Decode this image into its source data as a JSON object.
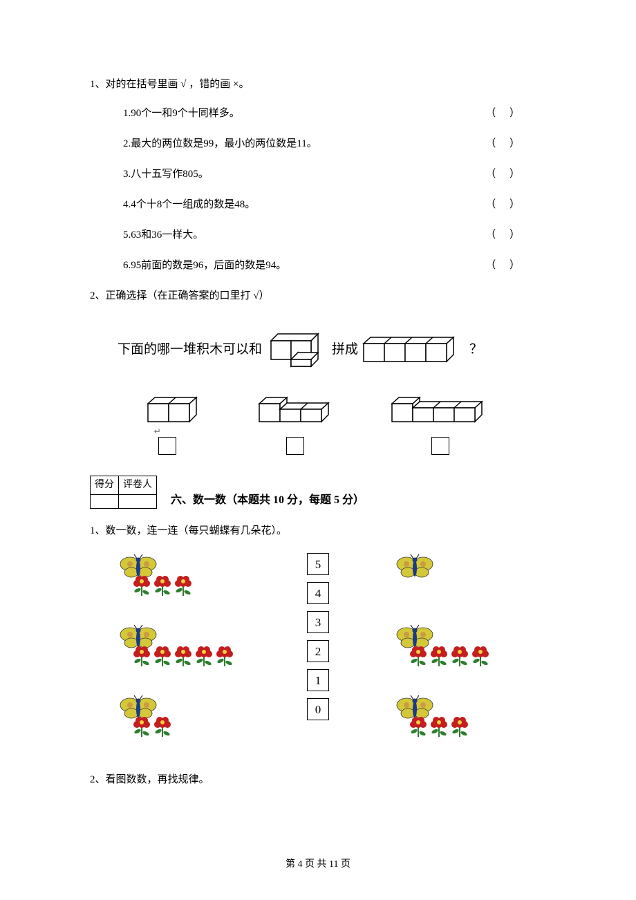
{
  "q1": {
    "prompt": "1、对的在括号里画 √ ，错的画 ×。",
    "items": [
      "1.90个一和9个十同样多。",
      "2.最大的两位数是99，最小的两位数是11。",
      "3.八十五写作805。",
      "4.4个十8个一组成的数是48。",
      "5.63和36一样大。",
      "6.95前面的数是96，后面的数是94。"
    ],
    "paren": "（    ）"
  },
  "q2": {
    "prompt": "2、正确选择（在正确答案的口里打 √）",
    "line_before": "下面的哪一堆积木可以和",
    "line_mid": "拼成",
    "line_after": "？"
  },
  "score": {
    "header1": "得分",
    "header2": "评卷人"
  },
  "section6": {
    "title": "六、数一数（本题共 10 分，每题 5 分）",
    "sub1": "1、数一数，连一连（每只蝴蝶有几朵花）。",
    "sub2": "2、看图数数，再找规律。",
    "numbers": [
      "5",
      "4",
      "3",
      "2",
      "1",
      "0"
    ],
    "left_groups": [
      {
        "flowers": 3
      },
      {
        "flowers": 5
      },
      {
        "flowers": 2
      }
    ],
    "right_groups": [
      {
        "flowers": 0
      },
      {
        "flowers": 4
      },
      {
        "flowers": 3
      }
    ]
  },
  "footer": "第 4 页 共 11 页",
  "colors": {
    "text": "#000000",
    "bg": "#ffffff",
    "border": "#000000",
    "butterfly_wing": "#d4c838",
    "butterfly_body": "#1a3a8a",
    "flower_petal": "#c41e1e",
    "flower_center": "#f0d040",
    "leaf": "#2e7d2e"
  }
}
